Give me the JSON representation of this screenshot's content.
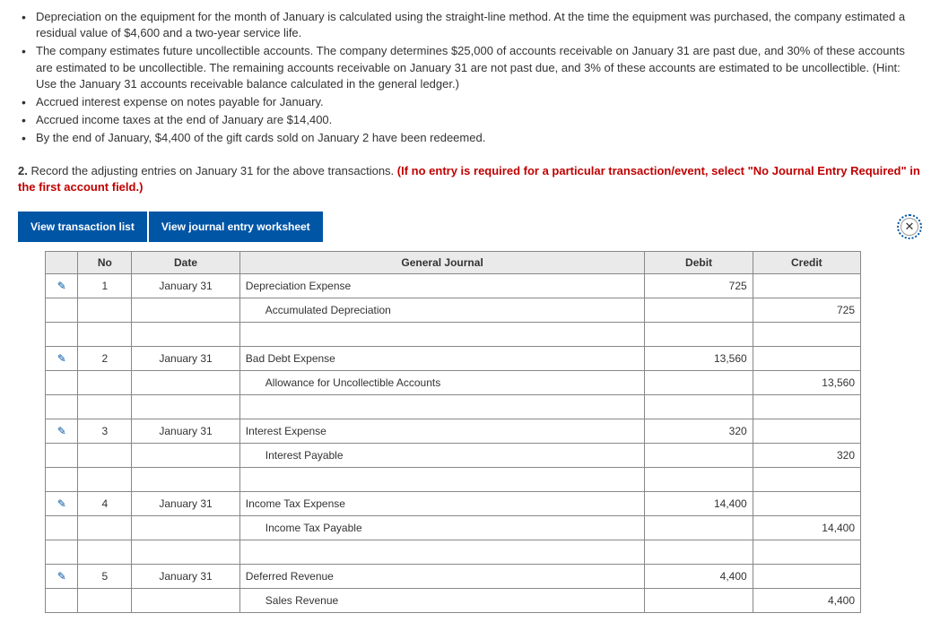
{
  "bullets": [
    "Depreciation on the equipment for the month of January is calculated using the straight-line method. At the time the equipment was purchased, the company estimated a residual value of $4,600 and a two-year service life.",
    "The company estimates future uncollectible accounts. The company determines $25,000 of accounts receivable on January 31 are past due, and 30% of these accounts are estimated to be uncollectible. The remaining accounts receivable on January 31 are not past due, and 3% of these accounts are estimated to be uncollectible. (Hint: Use the January 31 accounts receivable balance calculated in the general ledger.)",
    "Accrued interest expense on notes payable for January.",
    "Accrued income taxes at the end of January are $14,400.",
    "By the end of January, $4,400 of the gift cards sold on January 2 have been redeemed."
  ],
  "task": {
    "num": "2.",
    "text_black": "Record the adjusting entries on January 31 for the above transactions. ",
    "text_red": "(If no entry is required for a particular transaction/event, select \"No Journal Entry Required\" in the first account field.)"
  },
  "tabs": {
    "list": "View transaction list",
    "worksheet": "View journal entry worksheet"
  },
  "headers": {
    "no": "No",
    "date": "Date",
    "gj": "General Journal",
    "debit": "Debit",
    "credit": "Credit"
  },
  "entries": [
    {
      "no": "1",
      "date": "January 31",
      "lines": [
        {
          "acct": "Depreciation Expense",
          "debit": "725",
          "credit": "",
          "indent": false
        },
        {
          "acct": "Accumulated Depreciation",
          "debit": "",
          "credit": "725",
          "indent": true
        }
      ]
    },
    {
      "no": "2",
      "date": "January 31",
      "lines": [
        {
          "acct": "Bad Debt Expense",
          "debit": "13,560",
          "credit": "",
          "indent": false
        },
        {
          "acct": "Allowance for Uncollectible Accounts",
          "debit": "",
          "credit": "13,560",
          "indent": true
        }
      ]
    },
    {
      "no": "3",
      "date": "January 31",
      "lines": [
        {
          "acct": "Interest Expense",
          "debit": "320",
          "credit": "",
          "indent": false
        },
        {
          "acct": "Interest Payable",
          "debit": "",
          "credit": "320",
          "indent": true
        }
      ]
    },
    {
      "no": "4",
      "date": "January 31",
      "lines": [
        {
          "acct": "Income Tax Expense",
          "debit": "14,400",
          "credit": "",
          "indent": false
        },
        {
          "acct": "Income Tax Payable",
          "debit": "",
          "credit": "14,400",
          "indent": true
        }
      ]
    },
    {
      "no": "5",
      "date": "January 31",
      "lines": [
        {
          "acct": "Deferred Revenue",
          "debit": "4,400",
          "credit": "",
          "indent": false
        },
        {
          "acct": "Sales Revenue",
          "debit": "",
          "credit": "4,400",
          "indent": true
        }
      ]
    }
  ]
}
